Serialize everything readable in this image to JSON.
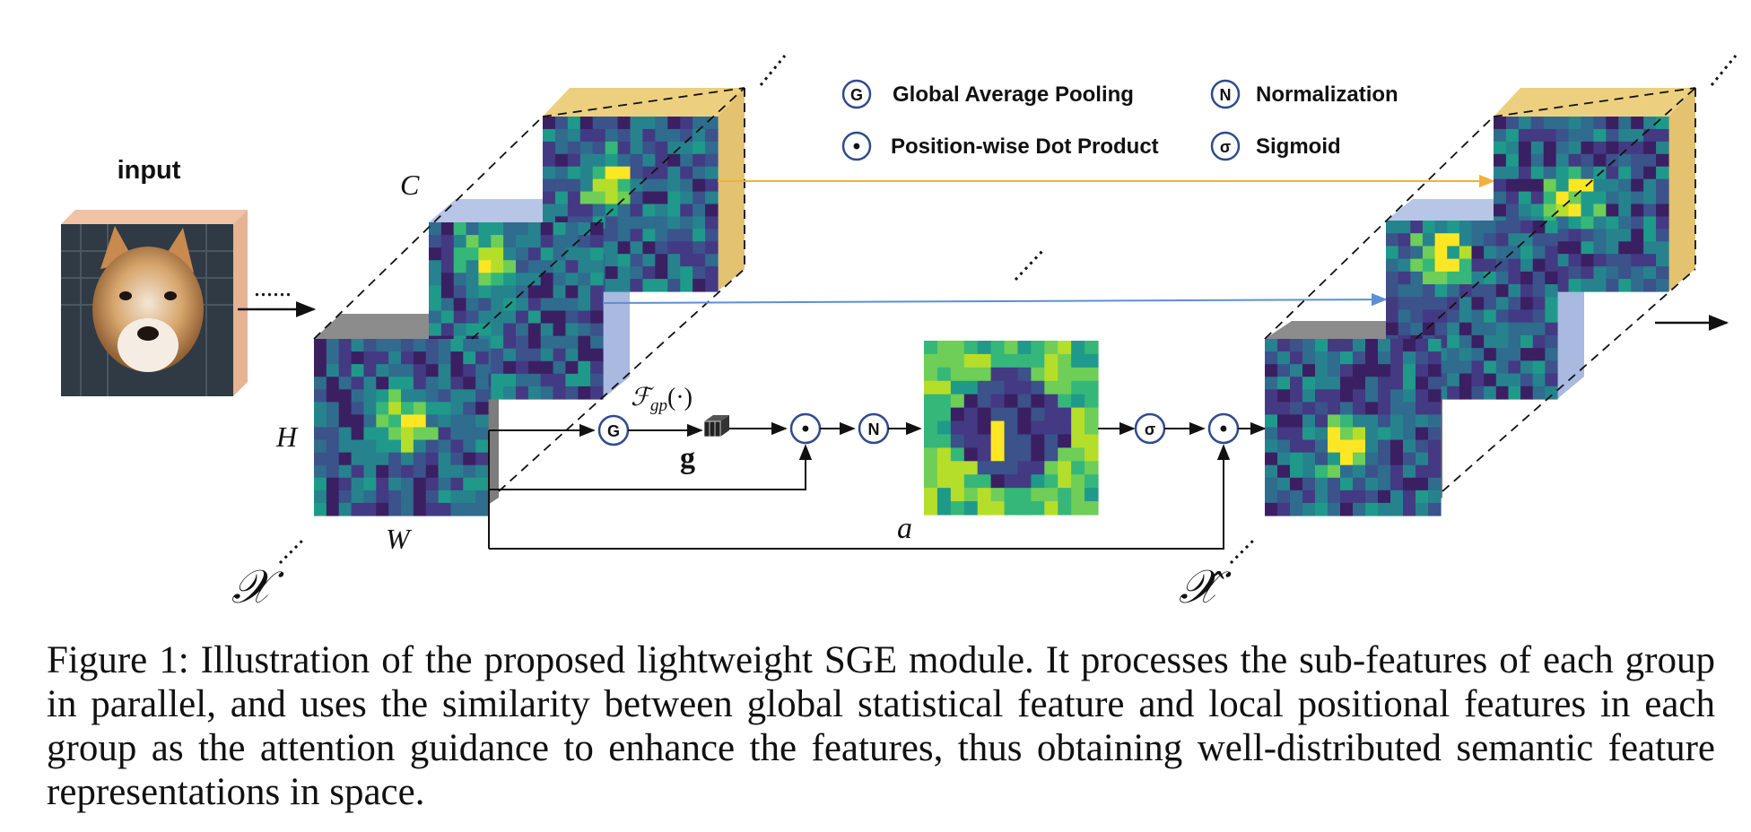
{
  "figure": {
    "input_label": "input",
    "dots": "......",
    "legend": [
      {
        "symbol": "G",
        "label": "Global Average Pooling",
        "icon": "g-circle-icon"
      },
      {
        "symbol": "N",
        "label": "Normalization",
        "icon": "n-circle-icon"
      },
      {
        "symbol": "•",
        "label": "Position-wise Dot Product",
        "icon": "dot-circle-icon"
      },
      {
        "symbol": "σ",
        "label": "Sigmoid",
        "icon": "sigma-circle-icon"
      }
    ],
    "dims": {
      "c": "C",
      "h": "H",
      "w": "W"
    },
    "x_label": "𝒳",
    "x_hat_label": "𝒳̂",
    "fgp_label": "ℱgp(·)",
    "fgp_main": "ℱ",
    "fgp_sub": "gp",
    "fgp_arg": "(·)",
    "g_label": "g",
    "a_label": "a",
    "ops": {
      "g": "G",
      "dot": "•",
      "n": "N",
      "sigma": "σ"
    },
    "colors": {
      "orange_arrow": "#f2b13a",
      "blue_arrow": "#5b8fd6",
      "yellow_face": "#ecd07f",
      "blue_face": "#b7c5e6",
      "gray_face": "#8c8c8c",
      "viridis_dark": "#3b1f63",
      "viridis_mid": "#2a8a8a",
      "viridis_bright": "#e6e51b"
    }
  },
  "caption": "Figure 1: Illustration of the proposed lightweight SGE module. It processes the sub-features of each group in parallel, and uses the similarity between global statistical feature and local positional features in each group as the attention guidance to enhance the features, thus obtaining well-distributed semantic feature representations in space."
}
